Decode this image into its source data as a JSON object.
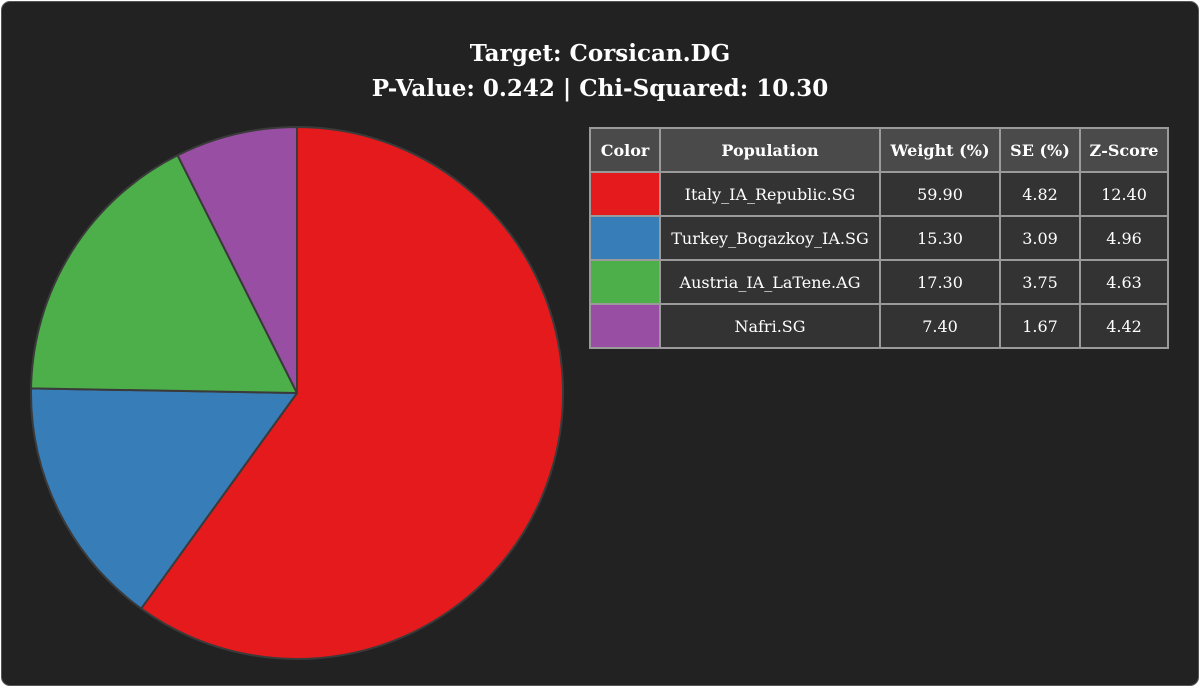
{
  "title": {
    "line1": "Target: Corsican.DG",
    "line2": "P-Value: 0.242 | Chi-Squared: 10.30"
  },
  "table": {
    "headers": [
      "Color",
      "Population",
      "Weight (%)",
      "SE (%)",
      "Z-Score"
    ],
    "rows": [
      {
        "color": "#e41a1c",
        "population": "Italy_IA_Republic.SG",
        "weight": "59.90",
        "se": "4.82",
        "z": "12.40"
      },
      {
        "color": "#377eb8",
        "population": "Turkey_Bogazkoy_IA.SG",
        "weight": "15.30",
        "se": "3.09",
        "z": "4.96"
      },
      {
        "color": "#4daf4a",
        "population": "Austria_IA_LaTene.AG",
        "weight": "17.30",
        "se": "3.75",
        "z": "4.63"
      },
      {
        "color": "#984ea3",
        "population": "Nafri.SG",
        "weight": "7.40",
        "se": "1.67",
        "z": "4.42"
      }
    ]
  },
  "chart_data": {
    "type": "pie",
    "title": "Target: Corsican.DG",
    "subtitle": "P-Value: 0.242 | Chi-Squared: 10.30",
    "start": "top",
    "direction": "clockwise",
    "slices": [
      {
        "label": "Italy_IA_Republic.SG",
        "value": 59.9,
        "color": "#e41a1c"
      },
      {
        "label": "Turkey_Bogazkoy_IA.SG",
        "value": 15.3,
        "color": "#377eb8"
      },
      {
        "label": "Austria_IA_LaTene.AG",
        "value": 17.3,
        "color": "#4daf4a"
      },
      {
        "label": "Nafri.SG",
        "value": 7.4,
        "color": "#984ea3"
      }
    ]
  }
}
